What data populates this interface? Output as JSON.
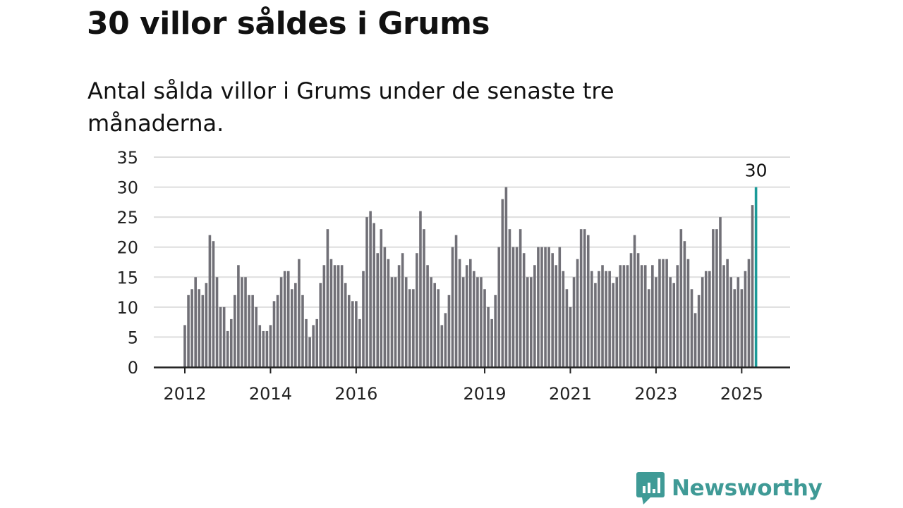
{
  "title": "30 villor såldes i Grums",
  "subtitle": "Antal sålda villor i Grums under de senaste tre månaderna.",
  "brand": {
    "name": "Newsworthy",
    "icon": "bar-chart-speech-bubble-icon"
  },
  "colors": {
    "bar": "#717077",
    "highlight": "#1a9a98",
    "grid": "#dddddd",
    "axis": "#222222",
    "brand": "#3f9a96"
  },
  "chart_data": {
    "type": "bar",
    "title": "30 villor såldes i Grums",
    "subtitle": "Antal sålda villor i Grums under de senaste tre månaderna.",
    "xlabel": "",
    "ylabel": "",
    "ylim": [
      0,
      35
    ],
    "yticks": [
      0,
      5,
      10,
      15,
      20,
      25,
      30,
      35
    ],
    "xticks": [
      {
        "label": "2012",
        "index": 0
      },
      {
        "label": "2014",
        "index": 24
      },
      {
        "label": "2016",
        "index": 48
      },
      {
        "label": "2019",
        "index": 84
      },
      {
        "label": "2021",
        "index": 108
      },
      {
        "label": "2023",
        "index": 132
      },
      {
        "label": "2025",
        "index": 156
      }
    ],
    "grid": true,
    "start": "2012-01",
    "frequency": "monthly",
    "highlight_last": true,
    "highlight_label": "30",
    "values": [
      7,
      12,
      13,
      15,
      13,
      12,
      14,
      22,
      21,
      15,
      10,
      10,
      6,
      8,
      12,
      17,
      15,
      15,
      12,
      12,
      10,
      7,
      6,
      6,
      7,
      11,
      12,
      15,
      16,
      16,
      13,
      14,
      18,
      12,
      8,
      5,
      7,
      8,
      14,
      17,
      23,
      18,
      17,
      17,
      17,
      14,
      12,
      11,
      11,
      8,
      16,
      25,
      26,
      24,
      19,
      23,
      20,
      18,
      15,
      15,
      17,
      19,
      15,
      13,
      13,
      19,
      26,
      23,
      17,
      15,
      14,
      13,
      7,
      9,
      12,
      20,
      22,
      18,
      15,
      17,
      18,
      16,
      15,
      15,
      13,
      10,
      8,
      12,
      20,
      28,
      30,
      23,
      20,
      20,
      23,
      19,
      15,
      15,
      17,
      20,
      20,
      20,
      20,
      19,
      17,
      20,
      16,
      13,
      10,
      15,
      18,
      23,
      23,
      22,
      16,
      14,
      16,
      17,
      16,
      16,
      14,
      15,
      17,
      17,
      17,
      19,
      22,
      19,
      17,
      17,
      13,
      17,
      15,
      18,
      18,
      18,
      15,
      14,
      17,
      23,
      21,
      18,
      13,
      9,
      12,
      15,
      16,
      16,
      23,
      23,
      25,
      17,
      18,
      15,
      13,
      15,
      13,
      16,
      18,
      27,
      30
    ]
  }
}
